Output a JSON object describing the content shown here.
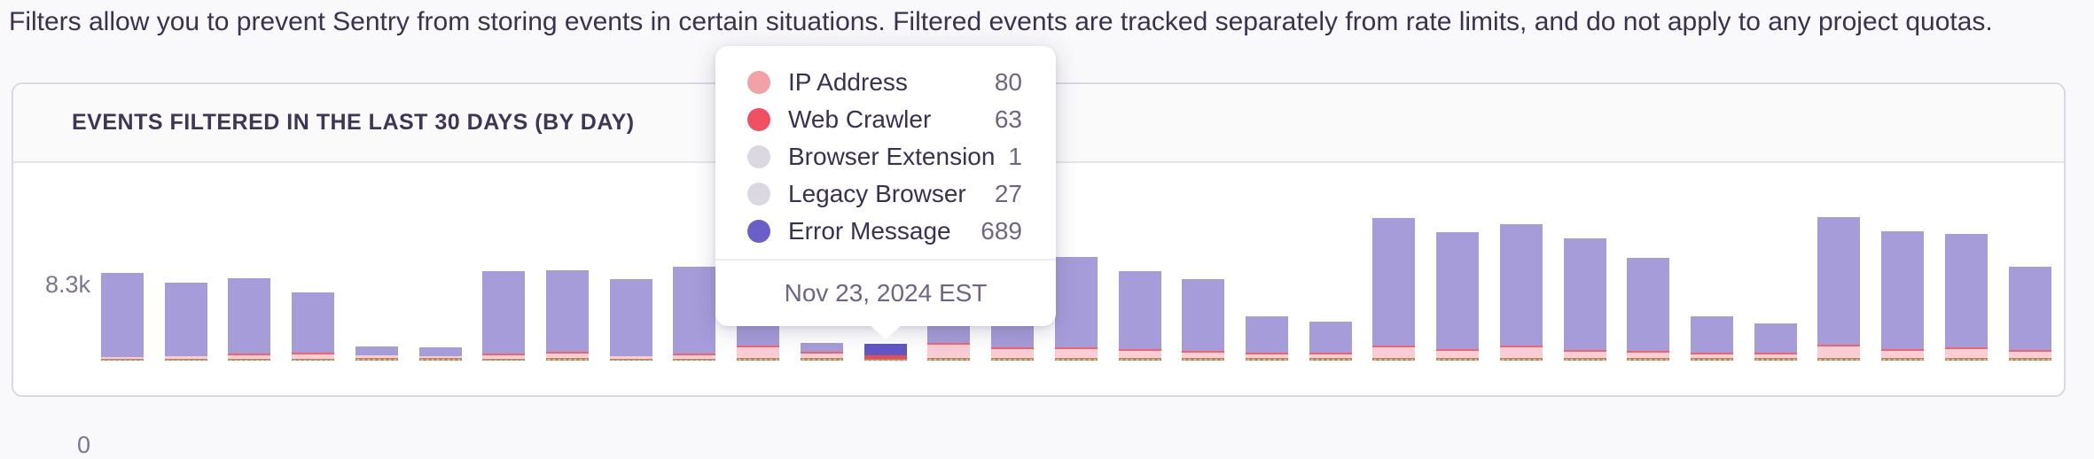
{
  "page": {
    "description": "Filters allow you to prevent Sentry from storing events in certain situations. Filtered events are tracked separately from rate limits, and do not apply to any project quotas."
  },
  "panel": {
    "title": "Events filtered in the last 30 days (by day)"
  },
  "chart_data": {
    "type": "bar",
    "stacked": true,
    "title": "Events filtered in the last 30 days (by day)",
    "xlabel": "",
    "ylabel": "",
    "y_axis": {
      "top_tick": "8.3k",
      "bottom_tick": "0",
      "ymax": 8300,
      "ymin": 0,
      "grid": false
    },
    "legend_position": "tooltip-only",
    "series_names": [
      "IP Address",
      "Web Crawler",
      "Browser Extension",
      "Legacy Browser",
      "Error Message"
    ],
    "colors": {
      "error_message": "#a69cd9",
      "error_message_highlight": "#6156c6",
      "ip_address": "#f8cdd3",
      "web_crawler": "#f2646c",
      "web_crawler_base": "#bd8559",
      "axis_label": "#7d7590"
    },
    "bars": [
      {
        "total": 4540,
        "ip_address": 90,
        "web_crawler": 50,
        "highlighted": false
      },
      {
        "total": 4040,
        "ip_address": 140,
        "web_crawler": 50,
        "highlighted": false
      },
      {
        "total": 4270,
        "ip_address": 180,
        "web_crawler": 90,
        "highlighted": false
      },
      {
        "total": 3530,
        "ip_address": 230,
        "web_crawler": 90,
        "highlighted": false
      },
      {
        "total": 730,
        "ip_address": 140,
        "web_crawler": 140,
        "highlighted": false
      },
      {
        "total": 690,
        "ip_address": 90,
        "web_crawler": 140,
        "highlighted": false
      },
      {
        "total": 4640,
        "ip_address": 180,
        "web_crawler": 90,
        "highlighted": false
      },
      {
        "total": 4680,
        "ip_address": 230,
        "web_crawler": 140,
        "highlighted": false
      },
      {
        "total": 4220,
        "ip_address": 140,
        "web_crawler": 90,
        "highlighted": false
      },
      {
        "total": 4860,
        "ip_address": 180,
        "web_crawler": 90,
        "highlighted": false
      },
      {
        "total": 3440,
        "ip_address": 550,
        "web_crawler": 140,
        "highlighted": false
      },
      {
        "total": 920,
        "ip_address": 230,
        "web_crawler": 140,
        "highlighted": false
      },
      {
        "total": 860,
        "ip_address": 80,
        "web_crawler": 63,
        "browser_extension": 1,
        "legacy_browser": 27,
        "error_message": 689,
        "highlighted": true
      },
      {
        "total": 1840,
        "ip_address": 690,
        "web_crawler": 140,
        "highlighted": false
      },
      {
        "total": 3210,
        "ip_address": 460,
        "web_crawler": 140,
        "highlighted": false
      },
      {
        "total": 5370,
        "ip_address": 460,
        "web_crawler": 140,
        "highlighted": false
      },
      {
        "total": 4640,
        "ip_address": 370,
        "web_crawler": 140,
        "highlighted": false
      },
      {
        "total": 4220,
        "ip_address": 280,
        "web_crawler": 140,
        "highlighted": false
      },
      {
        "total": 2290,
        "ip_address": 180,
        "web_crawler": 140,
        "highlighted": false
      },
      {
        "total": 2020,
        "ip_address": 180,
        "web_crawler": 140,
        "highlighted": false
      },
      {
        "total": 7390,
        "ip_address": 550,
        "web_crawler": 140,
        "highlighted": false
      },
      {
        "total": 6650,
        "ip_address": 370,
        "web_crawler": 140,
        "highlighted": false
      },
      {
        "total": 7060,
        "ip_address": 550,
        "web_crawler": 140,
        "highlighted": false
      },
      {
        "total": 6330,
        "ip_address": 320,
        "web_crawler": 140,
        "highlighted": false
      },
      {
        "total": 5320,
        "ip_address": 280,
        "web_crawler": 140,
        "highlighted": false
      },
      {
        "total": 2290,
        "ip_address": 180,
        "web_crawler": 140,
        "highlighted": false
      },
      {
        "total": 1930,
        "ip_address": 180,
        "web_crawler": 140,
        "highlighted": false
      },
      {
        "total": 7430,
        "ip_address": 600,
        "web_crawler": 140,
        "highlighted": false
      },
      {
        "total": 6700,
        "ip_address": 370,
        "web_crawler": 140,
        "highlighted": false
      },
      {
        "total": 6560,
        "ip_address": 460,
        "web_crawler": 140,
        "highlighted": false
      },
      {
        "total": 4860,
        "ip_address": 320,
        "web_crawler": 140,
        "highlighted": false
      }
    ]
  },
  "tooltip": {
    "rows": [
      {
        "label": "IP Address",
        "value": "80",
        "color": "#f2a2a7",
        "dotted": true
      },
      {
        "label": "Web Crawler",
        "value": "63",
        "color": "#f05062",
        "dotted": false
      },
      {
        "label": "Browser Extension",
        "value": "1",
        "color": "#dcd8e2",
        "dotted": false
      },
      {
        "label": "Legacy Browser",
        "value": "27",
        "color": "#dcd8e2",
        "dotted": false
      },
      {
        "label": "Error Message",
        "value": "689",
        "color": "#6a5ec9",
        "dotted": false
      }
    ],
    "date": "Nov 23, 2024 EST"
  }
}
